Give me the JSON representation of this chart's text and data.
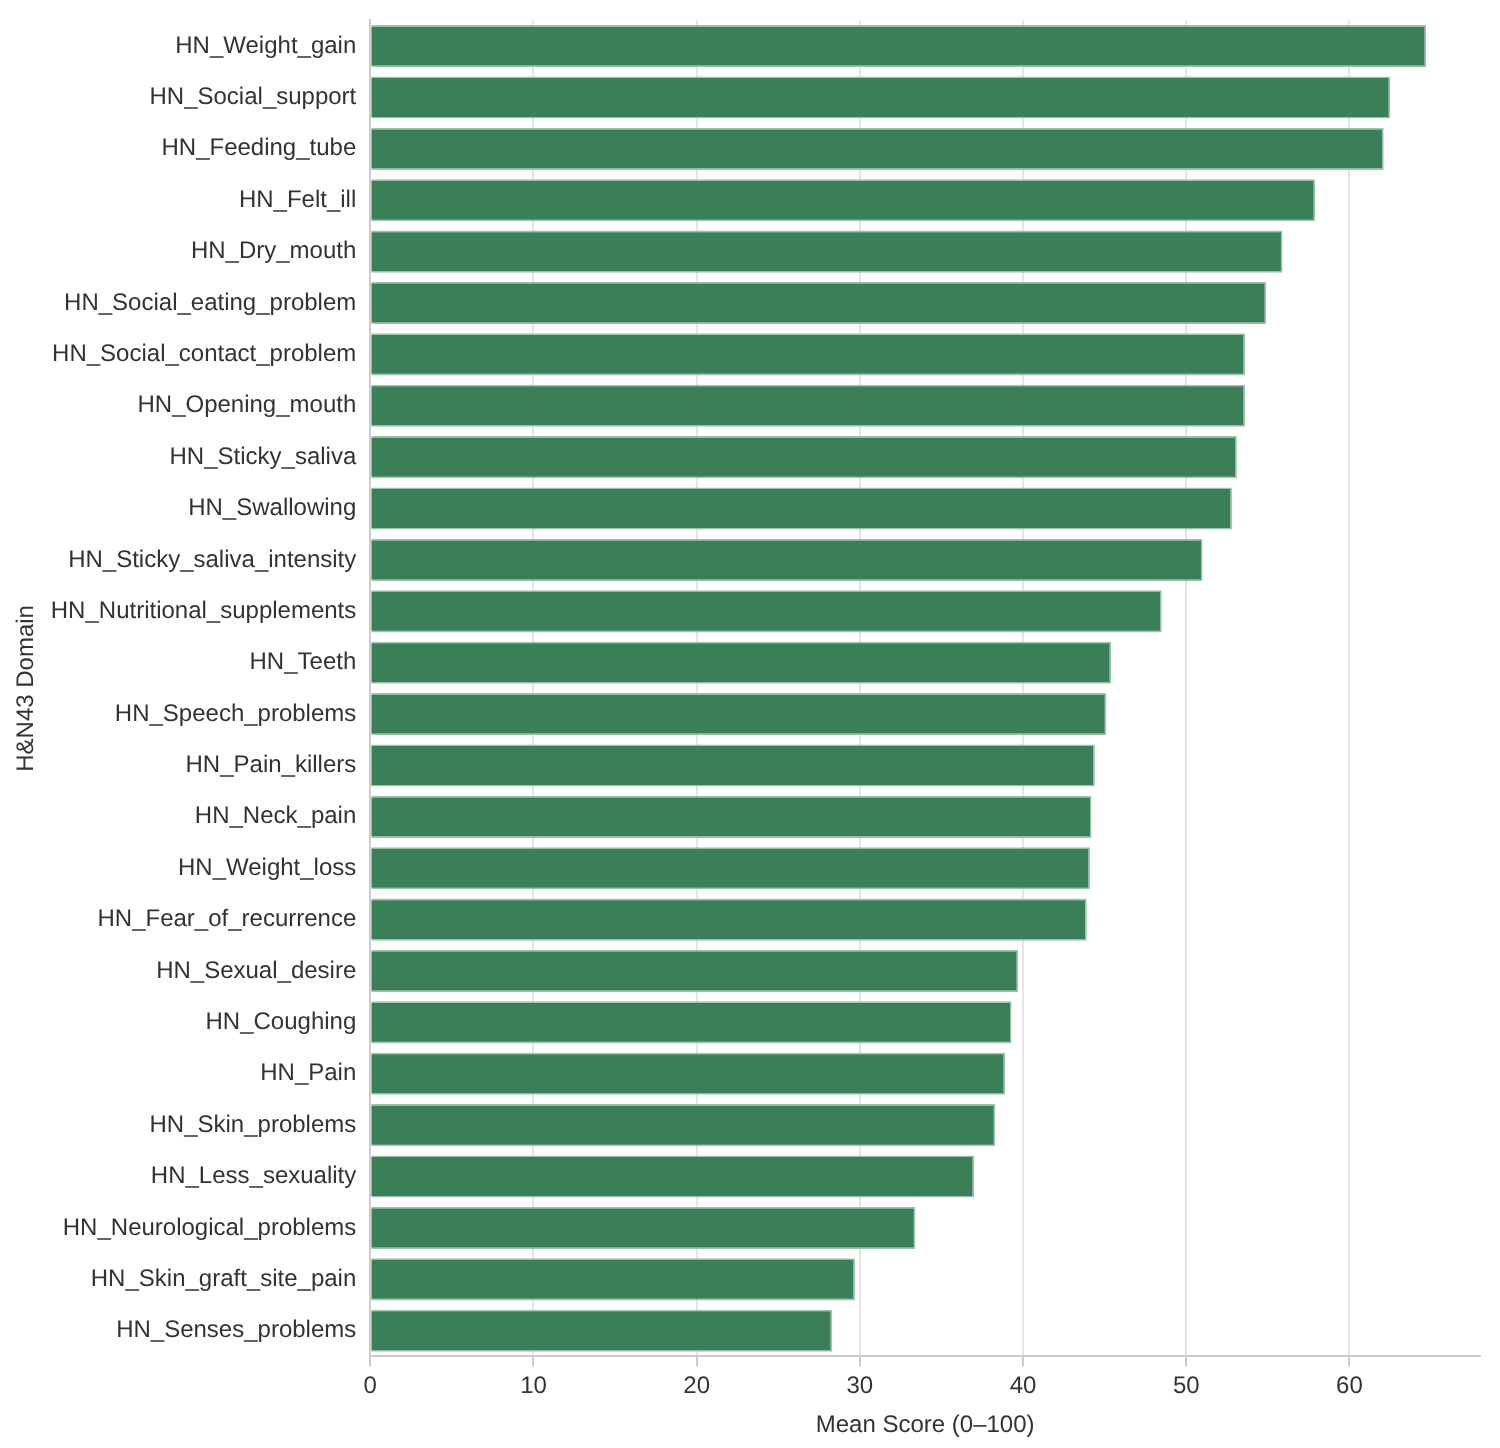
{
  "chart_data": {
    "type": "bar",
    "orientation": "horizontal",
    "xlabel": "Mean Score (0–100)",
    "ylabel": "H&N43 Domain",
    "categories": [
      "HN_Weight_gain",
      "HN_Social_support",
      "HN_Feeding_tube",
      "HN_Felt_ill",
      "HN_Dry_mouth",
      "HN_Social_eating_problem",
      "HN_Social_contact_problem",
      "HN_Opening_mouth",
      "HN_Sticky_saliva",
      "HN_Swallowing",
      "HN_Sticky_saliva_intensity",
      "HN_Nutritional_supplements",
      "HN_Teeth",
      "HN_Speech_problems",
      "HN_Pain_killers",
      "HN_Neck_pain",
      "HN_Weight_loss",
      "HN_Fear_of_recurrence",
      "HN_Sexual_desire",
      "HN_Coughing",
      "HN_Pain",
      "HN_Skin_problems",
      "HN_Less_sexuality",
      "HN_Neurological_problems",
      "HN_Skin_graft_site_pain",
      "HN_Senses_problems"
    ],
    "values": [
      64.7,
      62.5,
      62.1,
      57.9,
      55.9,
      54.9,
      53.6,
      53.6,
      53.1,
      52.8,
      51.0,
      48.5,
      45.4,
      45.1,
      44.4,
      44.2,
      44.1,
      43.9,
      39.7,
      39.3,
      38.9,
      38.3,
      37.0,
      33.4,
      29.7,
      28.3
    ],
    "color": "#3b7f58",
    "xlim": [
      0,
      68
    ],
    "xticks": [
      0,
      10,
      20,
      30,
      40,
      50,
      60
    ],
    "grid": "x",
    "legend": false
  }
}
